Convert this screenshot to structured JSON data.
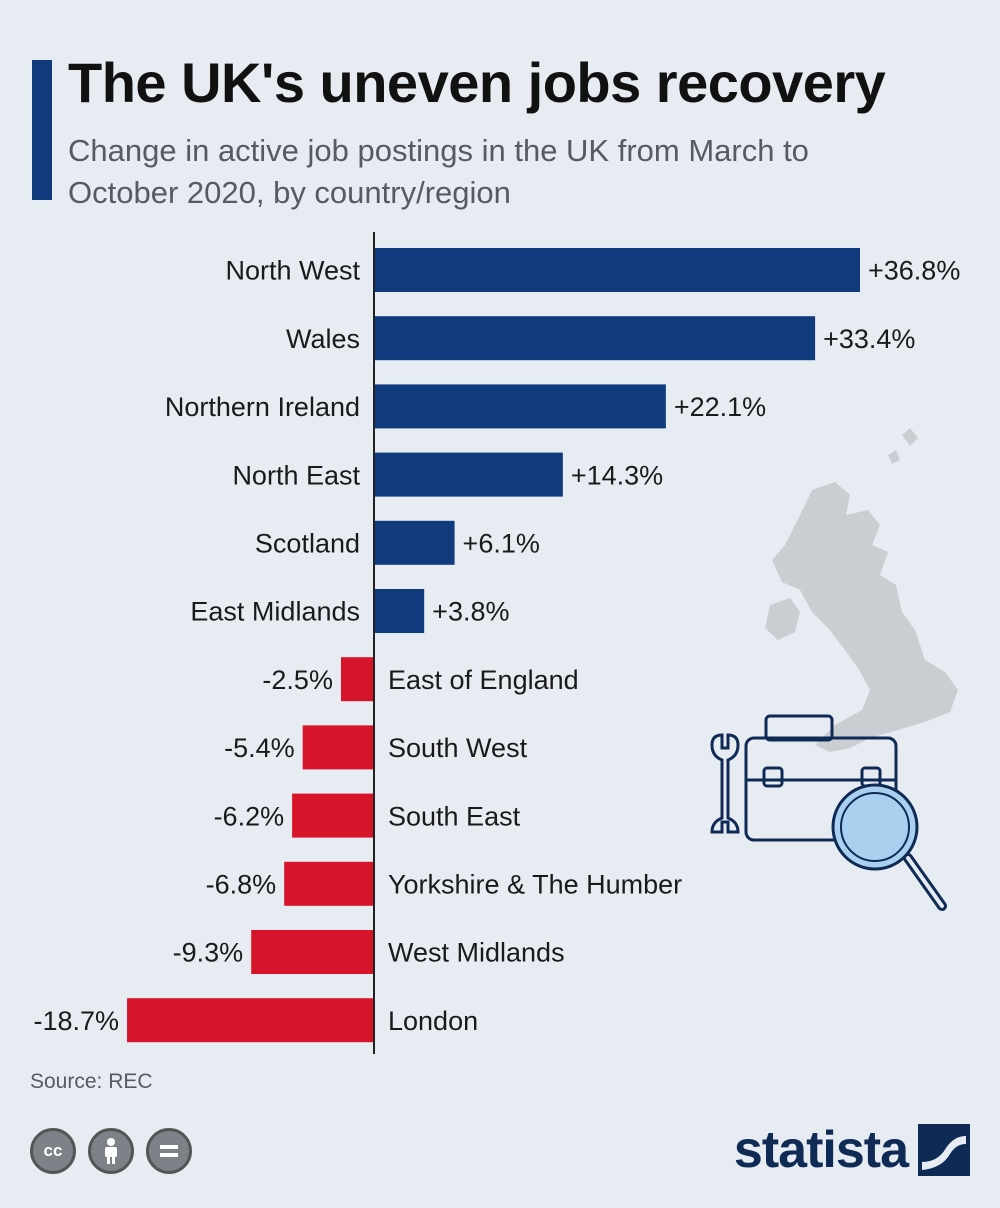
{
  "header": {
    "title": "The UK's uneven jobs recovery",
    "subtitle": "Change in active job postings in the UK from March to October 2020, by country/region"
  },
  "chart_data": {
    "type": "bar",
    "orientation": "horizontal",
    "title": "The UK's uneven jobs recovery",
    "subtitle": "Change in active job postings in the UK from March to October 2020, by country/region",
    "categories": [
      "North West",
      "Wales",
      "Northern Ireland",
      "North East",
      "Scotland",
      "East Midlands",
      "East of England",
      "South West",
      "South East",
      "Yorkshire & The Humber",
      "West Midlands",
      "London"
    ],
    "values": [
      36.8,
      33.4,
      22.1,
      14.3,
      6.1,
      3.8,
      -2.5,
      -5.4,
      -6.2,
      -6.8,
      -9.3,
      -18.7
    ],
    "value_labels": [
      "+36.8%",
      "+33.4%",
      "+22.1%",
      "+14.3%",
      "+6.1%",
      "+3.8%",
      "-2.5%",
      "-5.4%",
      "-6.2%",
      "-6.8%",
      "-9.3%",
      "-18.7%"
    ],
    "unit": "%",
    "colors": {
      "positive": "#0f3a7d",
      "negative": "#d7152a"
    },
    "grid": false,
    "legend": "none"
  },
  "footer": {
    "source": "Source: REC",
    "license_icons": [
      "cc-icon",
      "attribution-icon",
      "no-derivatives-icon"
    ],
    "brand": "statista"
  },
  "decorations": [
    "uk-map-icon",
    "briefcase-icon",
    "wrench-icon",
    "magnifier-icon"
  ]
}
